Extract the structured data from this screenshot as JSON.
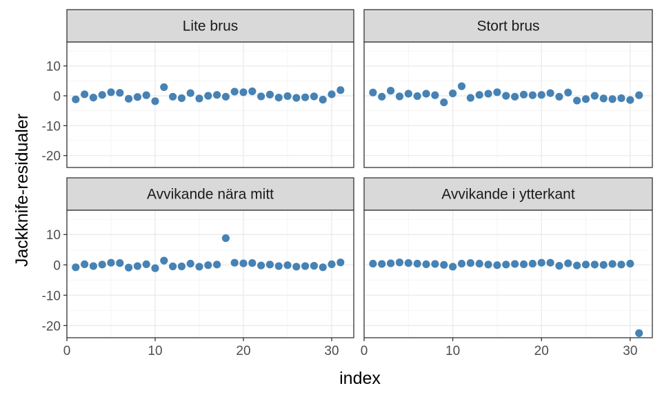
{
  "chart_data": {
    "type": "scatter",
    "xlabel": "index",
    "ylabel": "Jackknife-residualer",
    "xlim": [
      0,
      32.5
    ],
    "ylim": [
      -24,
      18
    ],
    "xticks": [
      0,
      10,
      20,
      30
    ],
    "yticks": [
      -20,
      -10,
      0,
      10
    ],
    "grid": true,
    "point_color": "#4682b4",
    "panels": [
      {
        "title": "Lite brus",
        "x": [
          1,
          2,
          3,
          4,
          5,
          6,
          7,
          8,
          9,
          10,
          11,
          12,
          13,
          14,
          15,
          16,
          17,
          18,
          19,
          20,
          21,
          22,
          23,
          24,
          25,
          26,
          27,
          28,
          29,
          30,
          31
        ],
        "y": [
          -1.2,
          0.5,
          -0.6,
          0.3,
          1.2,
          1.0,
          -1.0,
          -0.4,
          0.2,
          -1.8,
          2.9,
          -0.3,
          -0.8,
          0.9,
          -0.9,
          0.0,
          0.3,
          -0.3,
          1.4,
          1.2,
          1.5,
          -0.2,
          0.4,
          -0.6,
          -0.1,
          -0.7,
          -0.5,
          -0.2,
          -1.3,
          0.5,
          1.9
        ]
      },
      {
        "title": "Stort brus",
        "x": [
          1,
          2,
          3,
          4,
          5,
          6,
          7,
          8,
          9,
          10,
          11,
          12,
          13,
          14,
          15,
          16,
          17,
          18,
          19,
          20,
          21,
          22,
          23,
          24,
          25,
          26,
          27,
          28,
          29,
          30,
          31
        ],
        "y": [
          1.1,
          -0.3,
          1.7,
          -0.2,
          0.7,
          -0.1,
          0.7,
          0.2,
          -2.2,
          0.8,
          3.2,
          -0.7,
          0.3,
          0.7,
          1.2,
          0.0,
          -0.3,
          0.4,
          0.2,
          0.3,
          0.9,
          -0.3,
          1.1,
          -1.6,
          -1.1,
          0.0,
          -0.9,
          -1.1,
          -0.8,
          -1.4,
          0.2
        ]
      },
      {
        "title": "Avvikande nära mitt",
        "x": [
          1,
          2,
          3,
          4,
          5,
          6,
          7,
          8,
          9,
          10,
          11,
          12,
          13,
          14,
          15,
          16,
          17,
          18,
          19,
          20,
          21,
          22,
          23,
          24,
          25,
          26,
          27,
          28,
          29,
          30,
          31
        ],
        "y": [
          -0.8,
          0.2,
          -0.4,
          0.1,
          0.7,
          0.6,
          -0.9,
          -0.4,
          0.2,
          -1.1,
          1.4,
          -0.5,
          -0.5,
          0.4,
          -0.6,
          -0.1,
          0.1,
          8.8,
          0.7,
          0.5,
          0.6,
          -0.2,
          0.1,
          -0.4,
          -0.1,
          -0.6,
          -0.4,
          -0.3,
          -0.8,
          0.2,
          0.8
        ]
      },
      {
        "title": "Avvikande i ytterkant",
        "x": [
          1,
          2,
          3,
          4,
          5,
          6,
          7,
          8,
          9,
          10,
          11,
          12,
          13,
          14,
          15,
          16,
          17,
          18,
          19,
          20,
          21,
          22,
          23,
          24,
          25,
          26,
          27,
          28,
          29,
          30,
          31
        ],
        "y": [
          0.4,
          0.3,
          0.5,
          0.8,
          0.6,
          0.4,
          0.2,
          0.3,
          0.0,
          -0.6,
          0.4,
          0.6,
          0.4,
          0.1,
          -0.1,
          0.1,
          0.3,
          0.2,
          0.4,
          0.7,
          0.7,
          -0.3,
          0.5,
          -0.2,
          0.1,
          0.1,
          0.0,
          0.3,
          0.1,
          0.4,
          -22.5
        ]
      }
    ]
  }
}
